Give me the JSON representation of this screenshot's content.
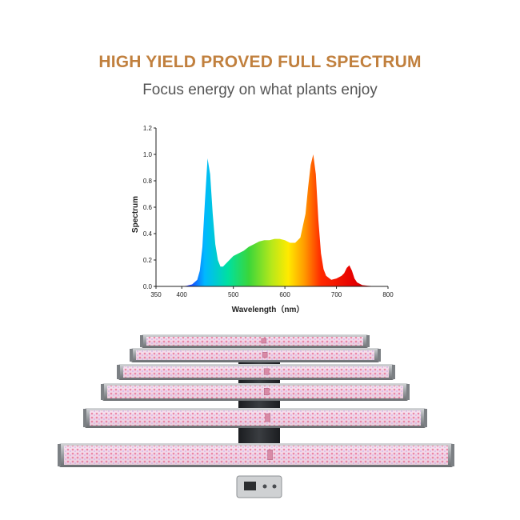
{
  "header": {
    "title": "HIGH YIELD PROVED FULL SPECTRUM",
    "subtitle": "Focus energy on what plants enjoy"
  },
  "colors": {
    "title": "#c1803e",
    "subtitle": "#555555",
    "axis": "#222222"
  },
  "chart_data": {
    "type": "area",
    "xlabel": "Wavelength（nm）",
    "ylabel": "Spectrum",
    "xlim": [
      350,
      800
    ],
    "ylim": [
      0,
      1.2
    ],
    "x_ticks": [
      350,
      400,
      500,
      600,
      700,
      800
    ],
    "x_tick_labels": [
      "350",
      "400",
      "500",
      "600",
      "700",
      "800"
    ],
    "y_ticks": [
      0.0,
      0.2,
      0.4,
      0.6,
      0.8,
      1.0,
      1.2
    ],
    "y_tick_labels": [
      "0.0",
      "0.2",
      "0.4",
      "0.6",
      "0.8",
      "1.0",
      "1.2"
    ],
    "fill": "rainbow gradient by wavelength",
    "grid": false,
    "series": [
      {
        "x": [
          400,
          410,
          420,
          430,
          435,
          440,
          445,
          450,
          455,
          460,
          465,
          470,
          475,
          480,
          490,
          500,
          510,
          520,
          530,
          540,
          550,
          560,
          570,
          580,
          590,
          600,
          610,
          620,
          630,
          640,
          645,
          650,
          655,
          660,
          665,
          670,
          675,
          680,
          690,
          700,
          710,
          715,
          720,
          725,
          730,
          735,
          740,
          750,
          760,
          770,
          780
        ],
        "values": [
          0.0,
          0.005,
          0.015,
          0.05,
          0.12,
          0.3,
          0.65,
          0.97,
          0.85,
          0.55,
          0.32,
          0.2,
          0.15,
          0.15,
          0.19,
          0.23,
          0.25,
          0.27,
          0.3,
          0.32,
          0.34,
          0.35,
          0.35,
          0.36,
          0.36,
          0.35,
          0.33,
          0.33,
          0.37,
          0.55,
          0.75,
          0.92,
          1.0,
          0.85,
          0.5,
          0.25,
          0.13,
          0.08,
          0.05,
          0.06,
          0.08,
          0.1,
          0.14,
          0.16,
          0.12,
          0.06,
          0.03,
          0.01,
          0.005,
          0.002,
          0.0
        ]
      }
    ]
  },
  "product": {
    "name": "LED grow light bar fixture",
    "bar_count": 6
  }
}
